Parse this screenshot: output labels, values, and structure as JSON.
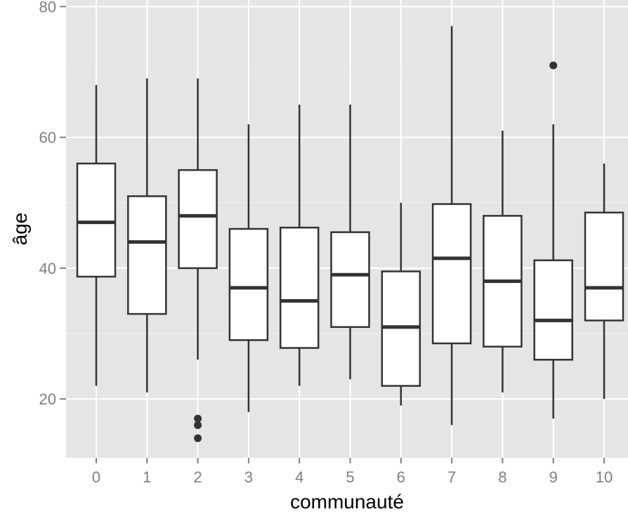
{
  "colors": {
    "panel_background": "#e5e5e5",
    "grid_major": "#ffffff",
    "grid_minor": "#f2f2f2",
    "box_fill": "#ffffff",
    "box_stroke": "#333333",
    "tick_label": "#7f7f7f",
    "axis_title": "#000000"
  },
  "chart_data": {
    "type": "boxplot",
    "title": "",
    "xlabel": "communauté",
    "ylabel": "âge",
    "ylim": [
      11,
      81
    ],
    "yticks": [
      20,
      40,
      60,
      80
    ],
    "grid": true,
    "legend": "none",
    "categories": [
      "0",
      "1",
      "2",
      "3",
      "4",
      "5",
      "6",
      "7",
      "8",
      "9",
      "10"
    ],
    "boxes": [
      {
        "category": "0",
        "lower_whisker": 22,
        "q1": 38.7,
        "median": 47,
        "q3": 56,
        "upper_whisker": 68,
        "outliers": []
      },
      {
        "category": "1",
        "lower_whisker": 21,
        "q1": 33,
        "median": 44,
        "q3": 51,
        "upper_whisker": 69,
        "outliers": []
      },
      {
        "category": "2",
        "lower_whisker": 26,
        "q1": 40,
        "median": 48,
        "q3": 55,
        "upper_whisker": 69,
        "outliers": [
          17,
          16,
          14
        ]
      },
      {
        "category": "3",
        "lower_whisker": 18,
        "q1": 29,
        "median": 37,
        "q3": 46,
        "upper_whisker": 62,
        "outliers": []
      },
      {
        "category": "4",
        "lower_whisker": 22,
        "q1": 27.8,
        "median": 35,
        "q3": 46.2,
        "upper_whisker": 65,
        "outliers": []
      },
      {
        "category": "5",
        "lower_whisker": 23,
        "q1": 31,
        "median": 39,
        "q3": 45.5,
        "upper_whisker": 65,
        "outliers": []
      },
      {
        "category": "6",
        "lower_whisker": 19,
        "q1": 22,
        "median": 31,
        "q3": 39.5,
        "upper_whisker": 50,
        "outliers": []
      },
      {
        "category": "7",
        "lower_whisker": 16,
        "q1": 28.5,
        "median": 41.5,
        "q3": 49.8,
        "upper_whisker": 77,
        "outliers": []
      },
      {
        "category": "8",
        "lower_whisker": 21,
        "q1": 28,
        "median": 38,
        "q3": 48,
        "upper_whisker": 61,
        "outliers": []
      },
      {
        "category": "9",
        "lower_whisker": 17,
        "q1": 26,
        "median": 32,
        "q3": 41.2,
        "upper_whisker": 62,
        "outliers": [
          71
        ]
      },
      {
        "category": "10",
        "lower_whisker": 20,
        "q1": 32,
        "median": 37,
        "q3": 48.5,
        "upper_whisker": 56,
        "outliers": []
      }
    ]
  }
}
